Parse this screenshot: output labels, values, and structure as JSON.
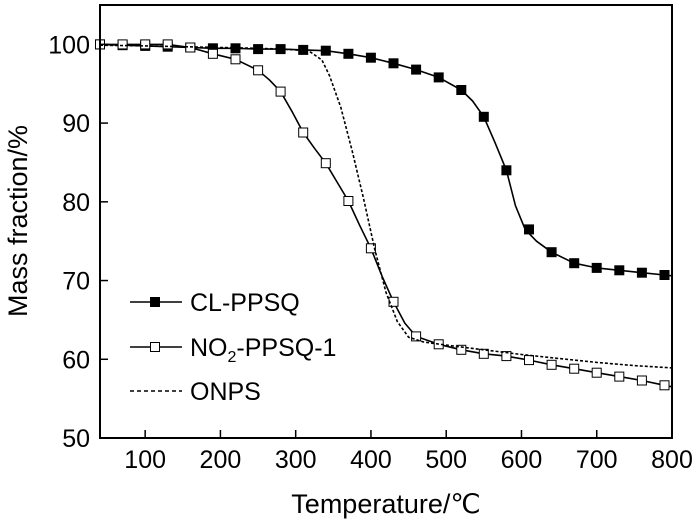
{
  "chart_data": {
    "type": "line",
    "title": "",
    "xlabel": "Temperature/℃",
    "ylabel": "Mass fraction/%",
    "xlim": [
      40,
      800
    ],
    "ylim": [
      50,
      105
    ],
    "x_ticks": [
      100,
      200,
      300,
      400,
      500,
      600,
      700,
      800
    ],
    "y_ticks": [
      50,
      60,
      70,
      80,
      90,
      100
    ],
    "x_tick_labels": [
      "100",
      "200",
      "300",
      "400",
      "500",
      "600",
      "700",
      "800"
    ],
    "y_tick_labels": [
      "50",
      "60",
      "70",
      "80",
      "90",
      "100"
    ],
    "legend_position": "bottom-left",
    "series": [
      {
        "name": "CL-PPSQ",
        "legend_main": "CL-PPSQ",
        "marker": "filled-square",
        "line": "solid",
        "color": "#000000",
        "x": [
          40,
          70,
          100,
          130,
          160,
          190,
          220,
          250,
          280,
          310,
          340,
          370,
          400,
          430,
          460,
          490,
          520,
          535,
          550,
          565,
          580,
          592,
          605,
          620,
          640,
          670,
          700,
          730,
          760,
          790,
          800
        ],
        "y": [
          100,
          99.9,
          99.8,
          99.7,
          99.6,
          99.5,
          99.5,
          99.4,
          99.4,
          99.3,
          99.2,
          98.8,
          98.3,
          97.6,
          96.8,
          95.8,
          94.2,
          92.8,
          90.8,
          87.5,
          84,
          79.5,
          76.5,
          75,
          73.6,
          72.2,
          71.6,
          71.3,
          71,
          70.7,
          70.6
        ],
        "markers_x": [
          40,
          70,
          100,
          130,
          160,
          190,
          220,
          250,
          280,
          310,
          340,
          370,
          400,
          430,
          460,
          490,
          520,
          550,
          580,
          610,
          640,
          670,
          700,
          730,
          760,
          790
        ],
        "markers_y": [
          100,
          99.9,
          99.8,
          99.7,
          99.6,
          99.5,
          99.5,
          99.4,
          99.4,
          99.3,
          99.2,
          98.8,
          98.3,
          97.6,
          96.8,
          95.8,
          94.2,
          90.8,
          84,
          76.5,
          73.6,
          72.2,
          71.6,
          71.3,
          71,
          70.7
        ]
      },
      {
        "name": "NO2-PPSQ-1",
        "legend_main": "NO",
        "legend_sub": "2",
        "legend_tail": "-PPSQ-1",
        "marker": "open-square",
        "line": "solid",
        "color": "#000000",
        "x": [
          40,
          70,
          100,
          130,
          160,
          190,
          220,
          250,
          265,
          280,
          295,
          310,
          325,
          340,
          355,
          370,
          385,
          400,
          415,
          430,
          445,
          460,
          490,
          520,
          550,
          580,
          610,
          640,
          670,
          700,
          730,
          760,
          790,
          800
        ],
        "y": [
          100,
          100,
          100,
          100,
          99.6,
          98.8,
          98.1,
          96.7,
          95.5,
          94,
          91.5,
          88.8,
          86.8,
          84.9,
          82.5,
          80.1,
          77,
          74.1,
          70.5,
          67.3,
          64.6,
          62.9,
          61.9,
          61.2,
          60.7,
          60.4,
          59.9,
          59.3,
          58.8,
          58.3,
          57.8,
          57.3,
          56.7,
          56.5
        ],
        "markers_x": [
          40,
          70,
          100,
          130,
          160,
          190,
          220,
          250,
          280,
          310,
          340,
          370,
          400,
          430,
          460,
          490,
          520,
          550,
          580,
          610,
          640,
          670,
          700,
          730,
          760,
          790
        ],
        "markers_y": [
          100,
          100,
          100,
          100,
          99.6,
          98.8,
          98.1,
          96.7,
          94,
          88.8,
          84.9,
          80.1,
          74.1,
          67.3,
          62.9,
          61.9,
          61.2,
          60.7,
          60.4,
          59.9,
          59.3,
          58.8,
          58.3,
          57.8,
          57.3,
          56.7
        ]
      },
      {
        "name": "ONPS",
        "legend_main": "ONPS",
        "marker": "none",
        "line": "dashed",
        "color": "#000000",
        "x": [
          40,
          100,
          200,
          250,
          280,
          300,
          320,
          335,
          345,
          360,
          375,
          390,
          405,
          420,
          435,
          450,
          470,
          500,
          550,
          600,
          650,
          700,
          750,
          800
        ],
        "y": [
          99.9,
          99.8,
          99.6,
          99.5,
          99.4,
          99.3,
          99,
          98,
          96,
          92,
          86.5,
          80.5,
          74,
          68.5,
          64.8,
          62.8,
          62.2,
          61.8,
          61.2,
          60.6,
          60.1,
          59.6,
          59.2,
          58.9
        ]
      }
    ]
  }
}
